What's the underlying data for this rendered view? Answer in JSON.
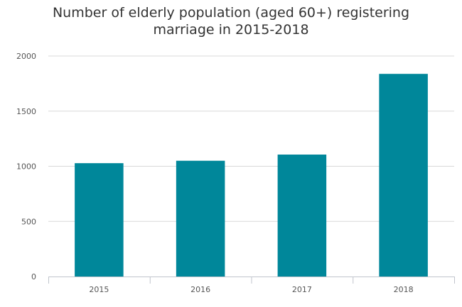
{
  "chart_data": {
    "type": "bar",
    "title_lines": [
      "Number of elderly population (aged 60+) registering",
      "marriage in 2015-2018"
    ],
    "categories": [
      "2015",
      "2016",
      "2017",
      "2018"
    ],
    "values": [
      1028,
      1050,
      1106,
      1838
    ],
    "ylim": [
      0,
      2000
    ],
    "yticks": [
      "0",
      "500",
      "1000",
      "1500",
      "2000"
    ],
    "xlabel": "",
    "ylabel": "",
    "grid": true,
    "bar_color": "#00879a",
    "grid_color": "#d8d8d8",
    "axis_color": "#c0c4cc"
  }
}
